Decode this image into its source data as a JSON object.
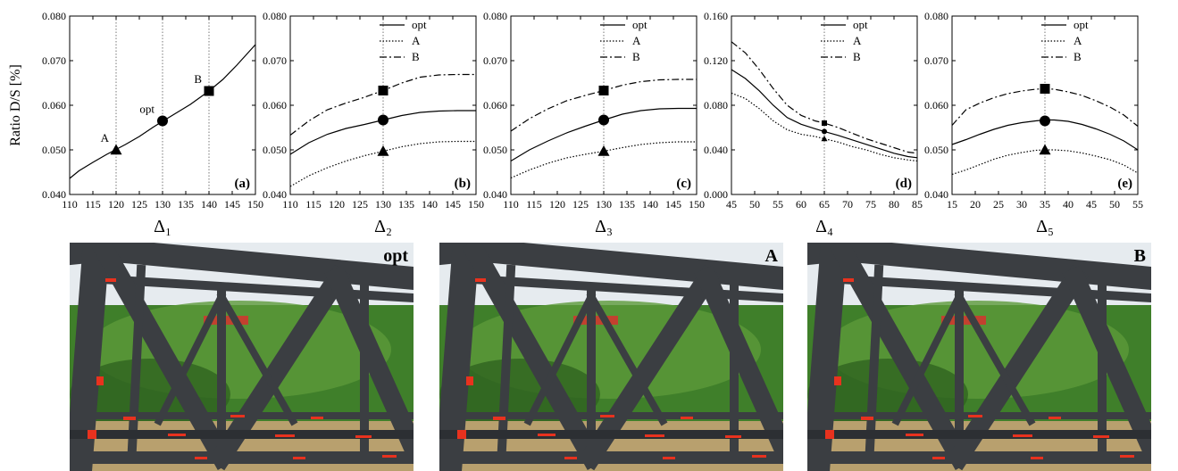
{
  "chart_data": [
    {
      "type": "line",
      "panel_label": "(a)",
      "xlabel": "Δ₁",
      "ylabel": "Ratio D/S [%]",
      "xlim": [
        110,
        150
      ],
      "ylim": [
        0.04,
        0.08
      ],
      "xticks": [
        "110",
        "115",
        "120",
        "125",
        "130",
        "135",
        "140",
        "145",
        "150"
      ],
      "yticks": [
        "0.040",
        "0.050",
        "0.060",
        "0.070",
        "0.080"
      ],
      "vlines": [
        120,
        130,
        140
      ],
      "series": [
        {
          "style": "solid",
          "x": [
            110,
            112,
            115,
            118,
            120,
            122,
            125,
            128,
            130,
            133,
            136,
            140,
            143,
            146,
            150
          ],
          "y": [
            0.0436,
            0.0453,
            0.0472,
            0.049,
            0.0501,
            0.0512,
            0.053,
            0.0551,
            0.0564,
            0.0583,
            0.0602,
            0.0632,
            0.0658,
            0.069,
            0.0736
          ]
        }
      ],
      "markers": [
        {
          "x": 120,
          "y": 0.05,
          "shape": "triangle",
          "label": "A"
        },
        {
          "x": 130,
          "y": 0.0565,
          "shape": "circle",
          "label": "opt"
        },
        {
          "x": 140,
          "y": 0.0632,
          "shape": "square",
          "label": "B"
        }
      ]
    },
    {
      "type": "line",
      "panel_label": "(b)",
      "xlabel": "Δ₂",
      "xlim": [
        110,
        150
      ],
      "ylim": [
        0.04,
        0.08
      ],
      "xticks": [
        "110",
        "115",
        "120",
        "125",
        "130",
        "135",
        "140",
        "145",
        "150"
      ],
      "yticks": [
        "0.040",
        "0.050",
        "0.060",
        "0.070",
        "0.080"
      ],
      "vlines": [
        130
      ],
      "legend": [
        "opt",
        "A",
        "B"
      ],
      "series": [
        {
          "name": "opt",
          "style": "solid",
          "x": [
            110,
            114,
            118,
            122,
            126,
            130,
            134,
            138,
            142,
            146,
            150
          ],
          "y": [
            0.049,
            0.0516,
            0.0535,
            0.0548,
            0.0557,
            0.0567,
            0.0577,
            0.0584,
            0.0587,
            0.0588,
            0.0588
          ]
        },
        {
          "name": "A",
          "style": "dotted",
          "x": [
            110,
            114,
            118,
            122,
            126,
            130,
            134,
            138,
            142,
            146,
            150
          ],
          "y": [
            0.0418,
            0.0442,
            0.046,
            0.0475,
            0.0487,
            0.0497,
            0.0507,
            0.0514,
            0.0518,
            0.0519,
            0.0519
          ]
        },
        {
          "name": "B",
          "style": "dashdot",
          "x": [
            110,
            114,
            118,
            122,
            126,
            130,
            134,
            138,
            142,
            146,
            150
          ],
          "y": [
            0.0533,
            0.0565,
            0.059,
            0.0605,
            0.0618,
            0.0633,
            0.065,
            0.0663,
            0.0668,
            0.0669,
            0.0669
          ]
        }
      ],
      "markers": [
        {
          "x": 130,
          "y": 0.0567,
          "shape": "circle"
        },
        {
          "x": 130,
          "y": 0.0497,
          "shape": "triangle"
        },
        {
          "x": 130,
          "y": 0.0633,
          "shape": "square"
        }
      ]
    },
    {
      "type": "line",
      "panel_label": "(c)",
      "xlabel": "Δ₃",
      "xlim": [
        110,
        150
      ],
      "ylim": [
        0.04,
        0.08
      ],
      "xticks": [
        "110",
        "115",
        "120",
        "125",
        "130",
        "135",
        "140",
        "145",
        "150"
      ],
      "yticks": [
        "0.040",
        "0.050",
        "0.060",
        "0.070",
        "0.080"
      ],
      "vlines": [
        130
      ],
      "legend": [
        "opt",
        "A",
        "B"
      ],
      "series": [
        {
          "name": "opt",
          "style": "solid",
          "x": [
            110,
            114,
            118,
            122,
            126,
            130,
            134,
            138,
            142,
            146,
            150
          ],
          "y": [
            0.0475,
            0.05,
            0.052,
            0.0538,
            0.0553,
            0.0567,
            0.058,
            0.0588,
            0.0592,
            0.0593,
            0.0593
          ]
        },
        {
          "name": "A",
          "style": "dotted",
          "x": [
            110,
            114,
            118,
            122,
            126,
            130,
            134,
            138,
            142,
            146,
            150
          ],
          "y": [
            0.0437,
            0.0455,
            0.047,
            0.0482,
            0.049,
            0.0497,
            0.0505,
            0.0512,
            0.0516,
            0.0518,
            0.0518
          ]
        },
        {
          "name": "B",
          "style": "dashdot",
          "x": [
            110,
            114,
            118,
            122,
            126,
            130,
            134,
            138,
            142,
            146,
            150
          ],
          "y": [
            0.0542,
            0.057,
            0.0592,
            0.061,
            0.0622,
            0.0633,
            0.0645,
            0.0653,
            0.0657,
            0.0658,
            0.0658
          ]
        }
      ],
      "markers": [
        {
          "x": 130,
          "y": 0.0567,
          "shape": "circle"
        },
        {
          "x": 130,
          "y": 0.0497,
          "shape": "triangle"
        },
        {
          "x": 130,
          "y": 0.0633,
          "shape": "square"
        }
      ]
    },
    {
      "type": "line",
      "panel_label": "(d)",
      "xlabel": "Δ₄",
      "xlim": [
        45,
        85
      ],
      "ylim": [
        0.0,
        0.16
      ],
      "xticks": [
        "45",
        "50",
        "55",
        "60",
        "65",
        "70",
        "75",
        "80",
        "85"
      ],
      "yticks": [
        "0.000",
        "0.040",
        "0.080",
        "0.120",
        "0.160"
      ],
      "vlines": [
        65
      ],
      "legend": [
        "opt",
        "A",
        "B"
      ],
      "series": [
        {
          "name": "opt",
          "style": "solid",
          "x": [
            45,
            48,
            51,
            54,
            57,
            60,
            63,
            65,
            68,
            71,
            74,
            77,
            80,
            83,
            85
          ],
          "y": [
            0.112,
            0.104,
            0.093,
            0.08,
            0.069,
            0.063,
            0.059,
            0.0565,
            0.053,
            0.049,
            0.045,
            0.041,
            0.037,
            0.034,
            0.033
          ]
        },
        {
          "name": "A",
          "style": "dotted",
          "x": [
            45,
            48,
            51,
            54,
            57,
            60,
            63,
            65,
            68,
            71,
            74,
            77,
            80,
            83,
            85
          ],
          "y": [
            0.091,
            0.086,
            0.077,
            0.066,
            0.058,
            0.054,
            0.052,
            0.05,
            0.047,
            0.043,
            0.04,
            0.036,
            0.033,
            0.031,
            0.03
          ]
        },
        {
          "name": "B",
          "style": "dashdot",
          "x": [
            45,
            48,
            51,
            54,
            57,
            60,
            63,
            65,
            68,
            71,
            74,
            77,
            80,
            83,
            85
          ],
          "y": [
            0.137,
            0.127,
            0.112,
            0.095,
            0.08,
            0.071,
            0.066,
            0.064,
            0.06,
            0.055,
            0.05,
            0.046,
            0.042,
            0.038,
            0.037
          ]
        }
      ],
      "markers": [
        {
          "x": 65,
          "y": 0.0565,
          "shape": "circle"
        },
        {
          "x": 65,
          "y": 0.05,
          "shape": "triangle"
        },
        {
          "x": 65,
          "y": 0.064,
          "shape": "square"
        }
      ]
    },
    {
      "type": "line",
      "panel_label": "(e)",
      "xlabel": "Δ₅",
      "xlim": [
        15,
        55
      ],
      "ylim": [
        0.04,
        0.08
      ],
      "xticks": [
        "15",
        "20",
        "25",
        "30",
        "35",
        "40",
        "45",
        "50",
        "55"
      ],
      "yticks": [
        "0.040",
        "0.050",
        "0.060",
        "0.070",
        "0.080"
      ],
      "vlines": [
        35
      ],
      "legend": [
        "opt",
        "A",
        "B"
      ],
      "series": [
        {
          "name": "opt",
          "style": "solid",
          "x": [
            15,
            18,
            21,
            24,
            27,
            30,
            33,
            35,
            37,
            40,
            43,
            46,
            49,
            52,
            55
          ],
          "y": [
            0.0512,
            0.0523,
            0.0535,
            0.0546,
            0.0555,
            0.0561,
            0.0565,
            0.0567,
            0.0567,
            0.0564,
            0.0557,
            0.0547,
            0.0535,
            0.052,
            0.05
          ]
        },
        {
          "name": "A",
          "style": "dotted",
          "x": [
            15,
            18,
            21,
            24,
            27,
            30,
            33,
            35,
            37,
            40,
            43,
            46,
            49,
            52,
            55
          ],
          "y": [
            0.0445,
            0.0455,
            0.0467,
            0.0479,
            0.0488,
            0.0494,
            0.0499,
            0.05,
            0.05,
            0.0498,
            0.0493,
            0.0486,
            0.0478,
            0.0466,
            0.0448
          ]
        },
        {
          "name": "B",
          "style": "dashdot",
          "x": [
            15,
            18,
            21,
            24,
            27,
            30,
            33,
            35,
            37,
            40,
            43,
            46,
            49,
            52,
            55
          ],
          "y": [
            0.0555,
            0.059,
            0.0605,
            0.0617,
            0.0626,
            0.0632,
            0.0636,
            0.0637,
            0.0636,
            0.063,
            0.0622,
            0.061,
            0.0596,
            0.0578,
            0.0553
          ]
        }
      ],
      "markers": [
        {
          "x": 35,
          "y": 0.0565,
          "shape": "circle"
        },
        {
          "x": 35,
          "y": 0.05,
          "shape": "triangle"
        },
        {
          "x": 35,
          "y": 0.0637,
          "shape": "square"
        }
      ]
    }
  ],
  "photos": [
    {
      "label": "opt"
    },
    {
      "label": "A"
    },
    {
      "label": "B"
    }
  ],
  "colors": {
    "steel": "#3b3e42",
    "foliage": "#3f7f2a",
    "highlight": "#e8321e",
    "sky": "#e6ebef"
  }
}
